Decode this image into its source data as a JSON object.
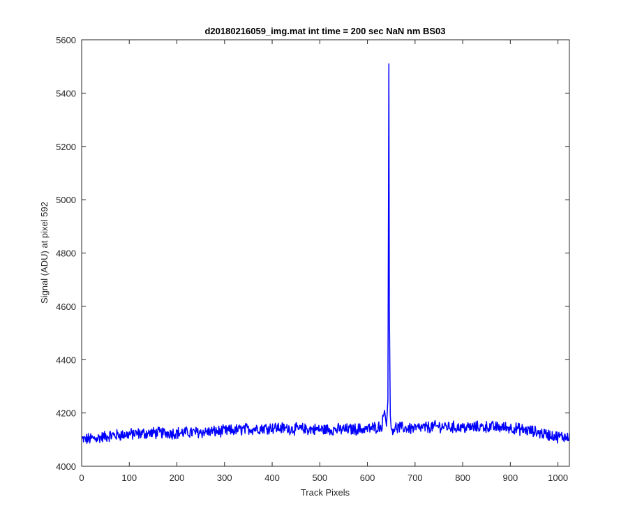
{
  "chart_data": {
    "type": "line",
    "title": "d20180216059_img.mat int time = 200 sec  NaN nm BS03",
    "xlabel": "Track Pixels",
    "ylabel": "Signal (ADU) at pixel 592",
    "xlim": [
      0,
      1024
    ],
    "ylim": [
      4000,
      5600
    ],
    "xticks": [
      "0",
      "100",
      "200",
      "300",
      "400",
      "500",
      "600",
      "700",
      "800",
      "900",
      "1000"
    ],
    "yticks": [
      "4000",
      "4200",
      "4400",
      "4600",
      "4800",
      "5000",
      "5200",
      "5400",
      "5600"
    ],
    "grid": false,
    "box": true,
    "series_color": "#0000ff",
    "series": [
      {
        "description": "approximate profile; noisy baseline (~±20 ADU) around these values",
        "x": [
          1,
          30,
          60,
          100,
          150,
          200,
          250,
          300,
          350,
          400,
          450,
          500,
          550,
          600,
          630,
          636,
          640,
          643,
          645,
          646,
          648,
          650,
          660,
          700,
          750,
          800,
          850,
          900,
          950,
          1000,
          1024
        ],
        "y": [
          4100,
          4105,
          4115,
          4120,
          4125,
          4125,
          4128,
          4132,
          4140,
          4145,
          4140,
          4138,
          4138,
          4140,
          4150,
          4210,
          4150,
          4250,
          5510,
          4600,
          4190,
          4140,
          4145,
          4142,
          4150,
          4145,
          4148,
          4145,
          4130,
          4110,
          4112
        ]
      }
    ]
  }
}
